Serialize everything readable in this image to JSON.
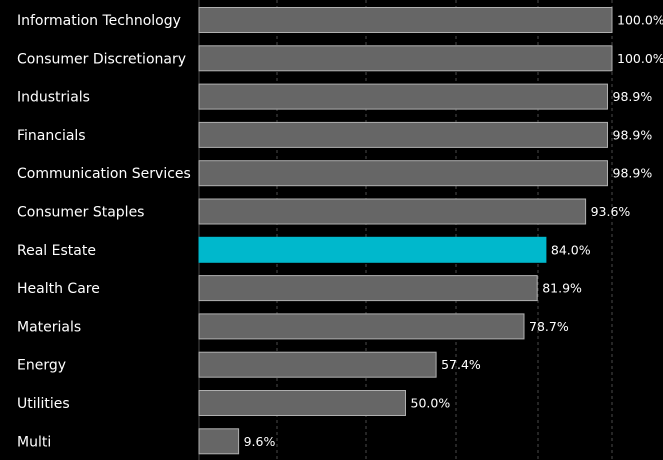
{
  "chart_data": {
    "type": "bar",
    "orientation": "horizontal",
    "categories": [
      "Information Technology",
      "Consumer Discretionary",
      "Industrials",
      "Financials",
      "Communication Services",
      "Consumer Staples",
      "Real Estate",
      "Health Care",
      "Materials",
      "Energy",
      "Utilities",
      "Multi"
    ],
    "values": [
      100.0,
      100.0,
      98.9,
      98.9,
      98.9,
      93.6,
      84.0,
      81.9,
      78.7,
      57.4,
      50.0,
      9.6
    ],
    "value_labels": [
      "100.0%",
      "100.0%",
      "98.9%",
      "98.9%",
      "98.9%",
      "93.6%",
      "84.0%",
      "81.9%",
      "78.7%",
      "57.4%",
      "50.0%",
      "9.6%"
    ],
    "highlight_category": "Real Estate",
    "xlim": [
      0,
      100
    ],
    "grid": true,
    "legend": "none",
    "colors": {
      "background": "#000000",
      "bar": "#666666",
      "bar_highlight": "#00b8cc",
      "bar_border": "#b0b0b0",
      "grid": "#4a4a4a",
      "text": "#ffffff"
    }
  }
}
